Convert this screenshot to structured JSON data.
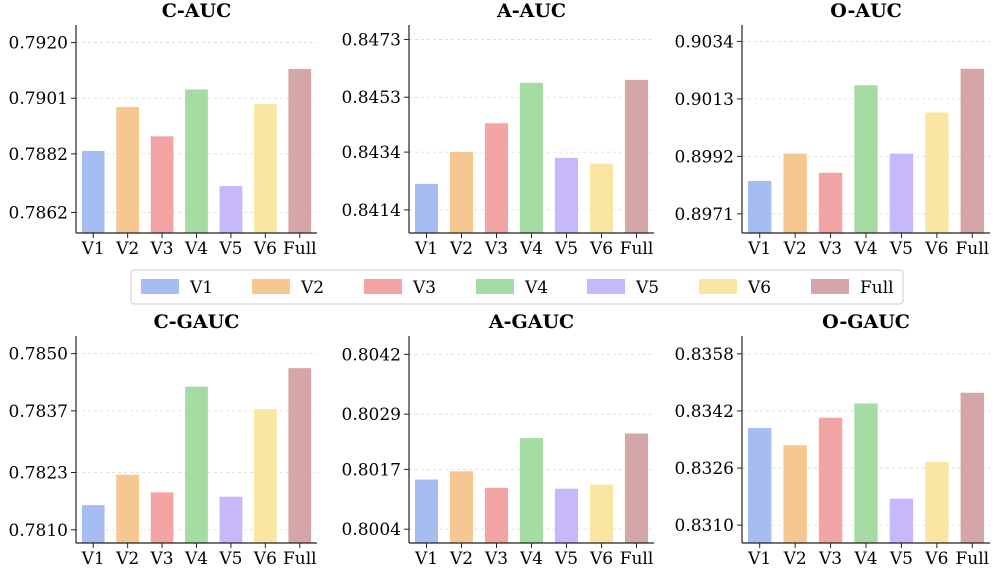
{
  "palette": [
    "#a5bdf1",
    "#f7c792",
    "#f3a5a6",
    "#a4dca3",
    "#c7b7fb",
    "#f9e6a2",
    "#d4a6a7"
  ],
  "legend": [
    "V1",
    "V2",
    "V3",
    "V4",
    "V5",
    "V6",
    "Full"
  ],
  "chart_data": [
    {
      "type": "bar",
      "title": "C-AUC",
      "categories": [
        "V1",
        "V2",
        "V3",
        "V4",
        "V5",
        "V6",
        "Full"
      ],
      "values": [
        0.7883,
        0.7898,
        0.7888,
        0.7904,
        0.7871,
        0.7899,
        0.7911
      ],
      "yticks": [
        "0.7862",
        "0.7882",
        "0.7901",
        "0.7920"
      ],
      "ylim": [
        0.7855,
        0.7926
      ],
      "grid": true
    },
    {
      "type": "bar",
      "title": "A-AUC",
      "categories": [
        "V1",
        "V2",
        "V3",
        "V4",
        "V5",
        "V6",
        "Full"
      ],
      "values": [
        0.8423,
        0.8434,
        0.8444,
        0.8458,
        0.8432,
        0.843,
        0.8459
      ],
      "yticks": [
        "0.8414",
        "0.8434",
        "0.8453",
        "0.8473"
      ],
      "ylim": [
        0.8406,
        0.8478
      ],
      "grid": true
    },
    {
      "type": "bar",
      "title": "O-AUC",
      "categories": [
        "V1",
        "V2",
        "V3",
        "V4",
        "V5",
        "V6",
        "Full"
      ],
      "values": [
        0.8983,
        0.8993,
        0.8986,
        0.9018,
        0.8993,
        0.9008,
        0.9024
      ],
      "yticks": [
        "0.8971",
        "0.8992",
        "0.9013",
        "0.9034"
      ],
      "ylim": [
        0.8964,
        0.904
      ],
      "grid": true
    },
    {
      "type": "bar",
      "title": "C-GAUC",
      "categories": [
        "V1",
        "V2",
        "V3",
        "V4",
        "V5",
        "V6",
        "Full"
      ],
      "values": [
        0.78156,
        0.78225,
        0.78185,
        0.78425,
        0.78175,
        0.78374,
        0.78467
      ],
      "yticks": [
        "0.7810",
        "0.7823",
        "0.7837",
        "0.7850"
      ],
      "ylim": [
        0.7807,
        0.7854
      ],
      "grid": true
    },
    {
      "type": "bar",
      "title": "A-GAUC",
      "categories": [
        "V1",
        "V2",
        "V3",
        "V4",
        "V5",
        "V6",
        "Full"
      ],
      "values": [
        0.80148,
        0.80166,
        0.8013,
        0.80238,
        0.80128,
        0.80137,
        0.80248
      ],
      "yticks": [
        "0.8004",
        "0.8017",
        "0.8029",
        "0.8042"
      ],
      "ylim": [
        0.8001,
        0.8046
      ],
      "grid": true
    },
    {
      "type": "bar",
      "title": "O-GAUC",
      "categories": [
        "V1",
        "V2",
        "V3",
        "V4",
        "V5",
        "V6",
        "Full"
      ],
      "values": [
        0.83372,
        0.83324,
        0.83401,
        0.83441,
        0.83174,
        0.83277,
        0.83471
      ],
      "yticks": [
        "0.8310",
        "0.8326",
        "0.8342",
        "0.8358"
      ],
      "ylim": [
        0.8305,
        0.8363
      ],
      "grid": true
    }
  ]
}
